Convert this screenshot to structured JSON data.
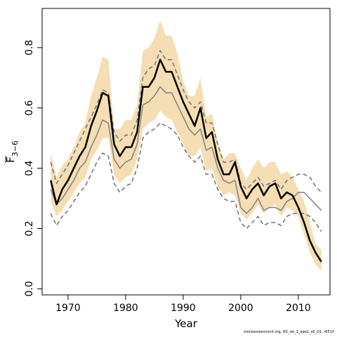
{
  "chart_data": {
    "type": "line",
    "xlabel": "Year",
    "ylabel_main": "F",
    "ylabel_sub": "3−6",
    "xlim": [
      1965.5,
      2015.5
    ],
    "ylim": [
      -0.02,
      0.93
    ],
    "x_ticks": [
      1970,
      1980,
      1990,
      2000,
      2010
    ],
    "y_ticks": [
      0.0,
      0.2,
      0.4,
      0.6,
      0.8
    ],
    "y_tick_labels": [
      "0.0",
      "0.2",
      "0.4",
      "0.6",
      "0.8"
    ],
    "grid": false,
    "legend": "none",
    "footnote": "stockassessment.org, NS_sei_1_age1_all_Q1, r6510",
    "x": [
      1967,
      1968,
      1969,
      1970,
      1971,
      1972,
      1973,
      1974,
      1975,
      1976,
      1977,
      1978,
      1979,
      1980,
      1981,
      1982,
      1983,
      1984,
      1985,
      1986,
      1987,
      1988,
      1989,
      1990,
      1991,
      1992,
      1993,
      1994,
      1995,
      1996,
      1997,
      1998,
      1999,
      2000,
      2001,
      2002,
      2003,
      2004,
      2005,
      2006,
      2007,
      2008,
      2009,
      2010,
      2011,
      2012,
      2013,
      2014
    ],
    "series": [
      {
        "role": "ci_upper",
        "color": "#f5deb3",
        "values": [
          0.45,
          0.37,
          0.41,
          0.43,
          0.47,
          0.52,
          0.55,
          0.64,
          0.7,
          0.77,
          0.76,
          0.53,
          0.53,
          0.56,
          0.56,
          0.61,
          0.79,
          0.8,
          0.83,
          0.89,
          0.84,
          0.84,
          0.78,
          0.69,
          0.64,
          0.64,
          0.7,
          0.57,
          0.58,
          0.49,
          0.43,
          0.45,
          0.45,
          0.4,
          0.36,
          0.4,
          0.43,
          0.4,
          0.42,
          0.42,
          0.38,
          0.39,
          0.37,
          0.33,
          0.29,
          0.22,
          0.15,
          0.13
        ]
      },
      {
        "role": "ci_lower",
        "color": "#f5deb3",
        "values": [
          0.29,
          0.24,
          0.26,
          0.29,
          0.32,
          0.35,
          0.37,
          0.43,
          0.46,
          0.5,
          0.5,
          0.38,
          0.35,
          0.37,
          0.38,
          0.43,
          0.53,
          0.55,
          0.56,
          0.59,
          0.57,
          0.56,
          0.52,
          0.48,
          0.44,
          0.44,
          0.47,
          0.39,
          0.4,
          0.34,
          0.31,
          0.32,
          0.31,
          0.25,
          0.23,
          0.25,
          0.28,
          0.25,
          0.27,
          0.28,
          0.24,
          0.27,
          0.26,
          0.24,
          0.18,
          0.12,
          0.08,
          0.06
        ]
      },
      {
        "role": "estimate",
        "color": "#000000",
        "values": [
          0.36,
          0.28,
          0.33,
          0.36,
          0.4,
          0.44,
          0.47,
          0.54,
          0.59,
          0.65,
          0.64,
          0.48,
          0.44,
          0.47,
          0.47,
          0.52,
          0.67,
          0.67,
          0.7,
          0.76,
          0.72,
          0.72,
          0.67,
          0.62,
          0.58,
          0.54,
          0.6,
          0.5,
          0.52,
          0.43,
          0.38,
          0.38,
          0.42,
          0.34,
          0.3,
          0.33,
          0.35,
          0.31,
          0.34,
          0.35,
          0.3,
          0.32,
          0.31,
          0.27,
          0.22,
          0.16,
          0.12,
          0.09
        ]
      },
      {
        "role": "alt_mid",
        "color": "#808080",
        "values": [
          0.33,
          0.28,
          0.3,
          0.33,
          0.36,
          0.4,
          0.42,
          0.47,
          0.51,
          0.56,
          0.55,
          0.43,
          0.4,
          0.42,
          0.43,
          0.48,
          0.61,
          0.62,
          0.64,
          0.67,
          0.65,
          0.65,
          0.61,
          0.57,
          0.53,
          0.51,
          0.53,
          0.46,
          0.47,
          0.4,
          0.36,
          0.35,
          0.36,
          0.27,
          0.25,
          0.27,
          0.3,
          0.26,
          0.27,
          0.27,
          0.26,
          0.29,
          0.3,
          0.32,
          0.32,
          0.3,
          0.28,
          0.26
        ]
      },
      {
        "role": "alt_upper",
        "color": "#707070",
        "values": [
          0.42,
          0.35,
          0.38,
          0.41,
          0.45,
          0.49,
          0.53,
          0.57,
          0.61,
          0.66,
          0.65,
          0.52,
          0.49,
          0.51,
          0.51,
          0.56,
          0.7,
          0.73,
          0.74,
          0.79,
          0.76,
          0.76,
          0.71,
          0.66,
          0.62,
          0.6,
          0.62,
          0.55,
          0.55,
          0.48,
          0.42,
          0.42,
          0.43,
          0.35,
          0.33,
          0.35,
          0.37,
          0.34,
          0.35,
          0.36,
          0.33,
          0.36,
          0.37,
          0.38,
          0.38,
          0.37,
          0.34,
          0.32
        ]
      },
      {
        "role": "alt_lower",
        "color": "#707070",
        "values": [
          0.25,
          0.21,
          0.24,
          0.26,
          0.29,
          0.32,
          0.34,
          0.38,
          0.42,
          0.45,
          0.44,
          0.35,
          0.32,
          0.34,
          0.35,
          0.4,
          0.5,
          0.52,
          0.53,
          0.55,
          0.54,
          0.53,
          0.51,
          0.47,
          0.44,
          0.42,
          0.44,
          0.38,
          0.38,
          0.33,
          0.3,
          0.29,
          0.29,
          0.22,
          0.2,
          0.22,
          0.24,
          0.21,
          0.22,
          0.22,
          0.21,
          0.24,
          0.25,
          0.25,
          0.25,
          0.24,
          0.22,
          0.19
        ]
      }
    ]
  }
}
